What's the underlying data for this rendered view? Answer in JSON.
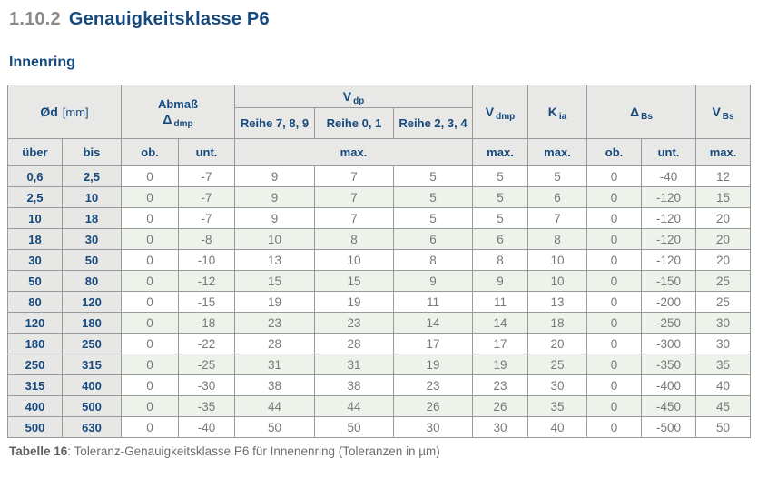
{
  "page": {
    "section_number": "1.10.2",
    "section_title": "Genauigkeitsklasse P6",
    "subtitle": "Innenring",
    "caption_label": "Tabelle 16",
    "caption_text": ": Toleranz-Genauigkeitsklasse P6 für Innenenring (Toleranzen in µm)"
  },
  "colors": {
    "accent_blue": "#16497e",
    "header_bg": "#e8e8e6",
    "range_col_bg": "#e7e7e5",
    "alt_row_green": "#edf2ea",
    "border_gray": "#9a9a9a",
    "data_text_gray": "#787878"
  },
  "table": {
    "header": {
      "od_symbol": "Ød",
      "od_unit": "[mm]",
      "abmass_label": "Abmaß",
      "abmass_symbol": "Δ",
      "abmass_sub": "dmp",
      "vdp_symbol": "V",
      "vdp_sub": "dp",
      "reihe_789": "Reihe 7, 8, 9",
      "reihe_01": "Reihe 0, 1",
      "reihe_234": "Reihe 2, 3, 4",
      "vdmp_symbol": "V",
      "vdmp_sub": "dmp",
      "kia_symbol": "K",
      "kia_sub": "ia",
      "dbs_symbol": "Δ",
      "dbs_sub": "Bs",
      "vbs_symbol": "V",
      "vbs_sub": "Bs",
      "sub_ueber": "über",
      "sub_bis": "bis",
      "sub_ob": "ob.",
      "sub_unt": "unt.",
      "sub_max": "max."
    },
    "rows": [
      [
        "0,6",
        "2,5",
        "0",
        "-7",
        "9",
        "7",
        "5",
        "5",
        "5",
        "0",
        "-40",
        "12"
      ],
      [
        "2,5",
        "10",
        "0",
        "-7",
        "9",
        "7",
        "5",
        "5",
        "6",
        "0",
        "-120",
        "15"
      ],
      [
        "10",
        "18",
        "0",
        "-7",
        "9",
        "7",
        "5",
        "5",
        "7",
        "0",
        "-120",
        "20"
      ],
      [
        "18",
        "30",
        "0",
        "-8",
        "10",
        "8",
        "6",
        "6",
        "8",
        "0",
        "-120",
        "20"
      ],
      [
        "30",
        "50",
        "0",
        "-10",
        "13",
        "10",
        "8",
        "8",
        "10",
        "0",
        "-120",
        "20"
      ],
      [
        "50",
        "80",
        "0",
        "-12",
        "15",
        "15",
        "9",
        "9",
        "10",
        "0",
        "-150",
        "25"
      ],
      [
        "80",
        "120",
        "0",
        "-15",
        "19",
        "19",
        "11",
        "11",
        "13",
        "0",
        "-200",
        "25"
      ],
      [
        "120",
        "180",
        "0",
        "-18",
        "23",
        "23",
        "14",
        "14",
        "18",
        "0",
        "-250",
        "30"
      ],
      [
        "180",
        "250",
        "0",
        "-22",
        "28",
        "28",
        "17",
        "17",
        "20",
        "0",
        "-300",
        "30"
      ],
      [
        "250",
        "315",
        "0",
        "-25",
        "31",
        "31",
        "19",
        "19",
        "25",
        "0",
        "-350",
        "35"
      ],
      [
        "315",
        "400",
        "0",
        "-30",
        "38",
        "38",
        "23",
        "23",
        "30",
        "0",
        "-400",
        "40"
      ],
      [
        "400",
        "500",
        "0",
        "-35",
        "44",
        "44",
        "26",
        "26",
        "35",
        "0",
        "-450",
        "45"
      ],
      [
        "500",
        "630",
        "0",
        "-40",
        "50",
        "50",
        "30",
        "30",
        "40",
        "0",
        "-500",
        "50"
      ]
    ]
  }
}
